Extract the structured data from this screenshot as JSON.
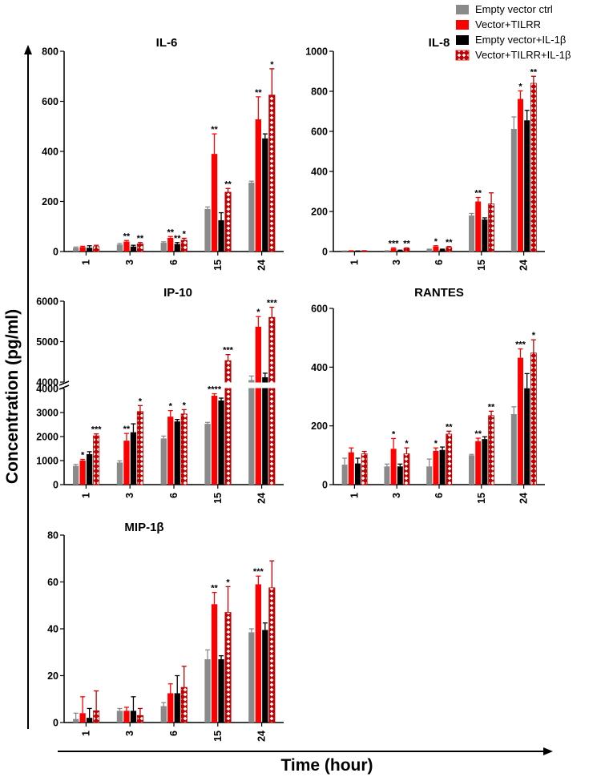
{
  "figure": {
    "ylabel": "Concentration (pg/ml)",
    "xlabel": "Time (hour)",
    "legend": {
      "placement": "top-right",
      "entries": [
        {
          "name": "Empty vector ctrl",
          "color": "#8a8a8a",
          "pattern": "solid"
        },
        {
          "name": "Vector+TILRR",
          "color": "#ff0000",
          "pattern": "solid"
        },
        {
          "name": "Empty vector+IL-1β",
          "color": "#000000",
          "pattern": "solid"
        },
        {
          "name": "Vector+TILRR+IL-1β",
          "color": "#c00000",
          "pattern": "diamond-hatch"
        }
      ]
    }
  },
  "chart_data": [
    {
      "type": "bar",
      "title": "IL-6",
      "categories": [
        "1",
        "3",
        "6",
        "15",
        "24"
      ],
      "ylim": [
        0,
        800
      ],
      "yticks": [
        "0",
        "200",
        "400",
        "600",
        "800"
      ],
      "series": [
        {
          "name": "Empty vector ctrl",
          "values": [
            15,
            28,
            35,
            170,
            275
          ],
          "errors": [
            3,
            4,
            4,
            8,
            6
          ]
        },
        {
          "name": "Vector+TILRR",
          "values": [
            18,
            40,
            55,
            390,
            528
          ],
          "errors": [
            3,
            4,
            5,
            80,
            90
          ]
        },
        {
          "name": "Empty vector+IL-1β",
          "values": [
            15,
            20,
            30,
            125,
            452
          ],
          "errors": [
            8,
            5,
            6,
            30,
            18
          ]
        },
        {
          "name": "Vector+TILRR+IL-1β",
          "values": [
            20,
            30,
            45,
            237,
            625
          ],
          "errors": [
            5,
            6,
            8,
            15,
            105
          ]
        }
      ],
      "annotations": [
        {
          "category": "3",
          "series": 1,
          "text": "**"
        },
        {
          "category": "3",
          "series": 3,
          "text": "**"
        },
        {
          "category": "6",
          "series": 1,
          "text": "**"
        },
        {
          "category": "6",
          "series": 2,
          "text": "**"
        },
        {
          "category": "6",
          "series": 3,
          "text": "*"
        },
        {
          "category": "15",
          "series": 1,
          "text": "**"
        },
        {
          "category": "15",
          "series": 3,
          "text": "**"
        },
        {
          "category": "24",
          "series": 1,
          "text": "**"
        },
        {
          "category": "24",
          "series": 3,
          "text": "*"
        }
      ]
    },
    {
      "type": "bar",
      "title": "IL-8",
      "categories": [
        "1",
        "3",
        "6",
        "15",
        "24"
      ],
      "ylim": [
        0,
        1000
      ],
      "yticks": [
        "0",
        "200",
        "400",
        "600",
        "800",
        "1000"
      ],
      "series": [
        {
          "name": "Empty vector ctrl",
          "values": [
            2,
            3,
            10,
            180,
            612
          ],
          "errors": [
            1,
            1,
            2,
            10,
            60
          ]
        },
        {
          "name": "Vector+TILRR",
          "values": [
            3,
            15,
            25,
            250,
            762
          ],
          "errors": [
            1,
            3,
            4,
            20,
            40
          ]
        },
        {
          "name": "Empty vector+IL-1β",
          "values": [
            2,
            5,
            10,
            160,
            655
          ],
          "errors": [
            1,
            2,
            2,
            8,
            50
          ]
        },
        {
          "name": "Vector+TILRR+IL-1β",
          "values": [
            3,
            15,
            20,
            238,
            840
          ],
          "errors": [
            1,
            3,
            5,
            55,
            35
          ]
        }
      ],
      "annotations": [
        {
          "category": "3",
          "series": 1,
          "text": "***"
        },
        {
          "category": "3",
          "series": 3,
          "text": "**"
        },
        {
          "category": "6",
          "series": 1,
          "text": "*"
        },
        {
          "category": "6",
          "series": 3,
          "text": "**"
        },
        {
          "category": "15",
          "series": 1,
          "text": "**"
        },
        {
          "category": "24",
          "series": 1,
          "text": "*"
        },
        {
          "category": "24",
          "series": 3,
          "text": "**"
        }
      ]
    },
    {
      "type": "bar",
      "title": "IP-10",
      "categories": [
        "1",
        "3",
        "6",
        "15",
        "24"
      ],
      "axis_break": {
        "lower": [
          0,
          4000
        ],
        "upper": [
          4000,
          6000
        ]
      },
      "yticks": [
        "0",
        "1000",
        "2000",
        "3000",
        "4000",
        "4000",
        "5000",
        "6000"
      ],
      "series": [
        {
          "name": "Empty vector ctrl",
          "values": [
            780,
            920,
            1920,
            2530,
            4050
          ],
          "errors": [
            60,
            70,
            100,
            60,
            100
          ]
        },
        {
          "name": "Vector+TILRR",
          "values": [
            1000,
            1830,
            2830,
            3700,
            5370
          ],
          "errors": [
            50,
            300,
            250,
            80,
            250
          ]
        },
        {
          "name": "Empty vector+IL-1β",
          "values": [
            1270,
            2180,
            2630,
            3500,
            4120
          ],
          "errors": [
            100,
            350,
            80,
            100,
            100
          ]
        },
        {
          "name": "Vector+TILRR+IL-1β",
          "values": [
            2030,
            3040,
            2940,
            4530,
            5600
          ],
          "errors": [
            80,
            250,
            180,
            150,
            250
          ]
        }
      ],
      "annotations": [
        {
          "category": "1",
          "series": 1,
          "text": "*"
        },
        {
          "category": "1",
          "series": 3,
          "text": "***"
        },
        {
          "category": "3",
          "series": 1,
          "text": "**"
        },
        {
          "category": "3",
          "series": 3,
          "text": "*"
        },
        {
          "category": "6",
          "series": 1,
          "text": "*"
        },
        {
          "category": "6",
          "series": 3,
          "text": "*"
        },
        {
          "category": "15",
          "series": 1,
          "text": "****"
        },
        {
          "category": "15",
          "series": 3,
          "text": "***"
        },
        {
          "category": "24",
          "series": 1,
          "text": "*"
        },
        {
          "category": "24",
          "series": 3,
          "text": "***"
        }
      ]
    },
    {
      "type": "bar",
      "title": "RANTES",
      "categories": [
        "1",
        "3",
        "6",
        "15",
        "24"
      ],
      "ylim": [
        0,
        600
      ],
      "yticks": [
        "0",
        "200",
        "400",
        "600"
      ],
      "series": [
        {
          "name": "Empty vector ctrl",
          "values": [
            68,
            62,
            62,
            100,
            240
          ],
          "errors": [
            22,
            8,
            25,
            3,
            25
          ]
        },
        {
          "name": "Vector+TILRR",
          "values": [
            110,
            122,
            115,
            148,
            432
          ],
          "errors": [
            15,
            35,
            10,
            10,
            30
          ]
        },
        {
          "name": "Empty vector+IL-1β",
          "values": [
            72,
            62,
            118,
            155,
            328
          ],
          "errors": [
            18,
            8,
            10,
            8,
            50
          ]
        },
        {
          "name": "Vector+TILRR+IL-1β",
          "values": [
            105,
            105,
            172,
            235,
            448
          ],
          "errors": [
            8,
            20,
            10,
            15,
            45
          ]
        }
      ],
      "annotations": [
        {
          "category": "3",
          "series": 1,
          "text": "*"
        },
        {
          "category": "3",
          "series": 3,
          "text": "*"
        },
        {
          "category": "6",
          "series": 1,
          "text": "*"
        },
        {
          "category": "6",
          "series": 3,
          "text": "**"
        },
        {
          "category": "15",
          "series": 1,
          "text": "**"
        },
        {
          "category": "15",
          "series": 3,
          "text": "**"
        },
        {
          "category": "24",
          "series": 1,
          "text": "***"
        },
        {
          "category": "24",
          "series": 3,
          "text": "*"
        }
      ]
    },
    {
      "type": "bar",
      "title": "MIP-1β",
      "categories": [
        "1",
        "3",
        "6",
        "15",
        "24"
      ],
      "ylim": [
        0,
        80
      ],
      "yticks": [
        "0",
        "20",
        "40",
        "60",
        "80"
      ],
      "series": [
        {
          "name": "Empty vector ctrl",
          "values": [
            1.5,
            5,
            7,
            27,
            38.5
          ],
          "errors": [
            2.5,
            1,
            1.5,
            4,
            1.5
          ]
        },
        {
          "name": "Vector+TILRR",
          "values": [
            4,
            5,
            12.5,
            50.5,
            59
          ],
          "errors": [
            7,
            1.5,
            4,
            5,
            3.5
          ]
        },
        {
          "name": "Empty vector+IL-1β",
          "values": [
            2,
            5,
            12.5,
            27,
            39.5
          ],
          "errors": [
            4,
            6,
            7.5,
            1.5,
            3
          ]
        },
        {
          "name": "Vector+TILRR+IL-1β",
          "values": [
            5,
            3,
            15,
            47,
            57.5
          ],
          "errors": [
            8.5,
            3,
            9,
            11,
            11.5
          ]
        }
      ],
      "annotations": [
        {
          "category": "15",
          "series": 1,
          "text": "**"
        },
        {
          "category": "15",
          "series": 3,
          "text": "*"
        },
        {
          "category": "24",
          "series": 1,
          "text": "***"
        }
      ]
    }
  ]
}
